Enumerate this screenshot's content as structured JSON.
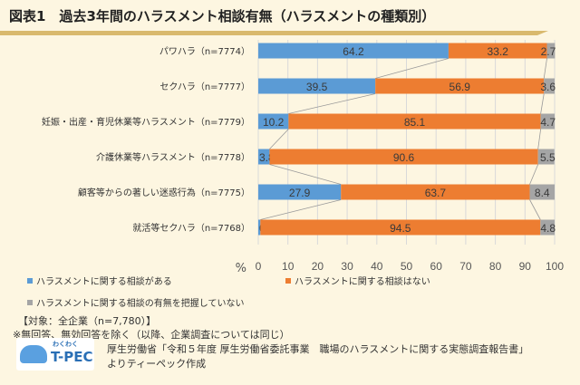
{
  "title": "図表1　過去3年間のハラスメント相談有無（ハラスメントの種類別）",
  "chart_data": {
    "type": "bar",
    "orientation": "horizontal",
    "stacked": true,
    "categories": [
      "パワハラ（n=7774）",
      "セクハラ（n=7777）",
      "妊娠・出産・育児休業等ハラスメント（n=7779）",
      "介護休業等ハラスメント（n=7778）",
      "顧客等からの著しい迷惑行為（n=7775）",
      "就活等セクハラ（n=7768）"
    ],
    "series": [
      {
        "name": "ハラスメントに関する相談がある",
        "color": "#5b9bd5",
        "values": [
          64.2,
          39.5,
          10.2,
          3.8,
          27.9,
          0.7
        ]
      },
      {
        "name": "ハラスメントに関する相談はない",
        "color": "#ed7d31",
        "values": [
          33.2,
          56.9,
          85.1,
          90.6,
          63.7,
          94.5
        ]
      },
      {
        "name": "ハラスメントに関する相談の有無を把握していない",
        "color": "#a5a5a5",
        "values": [
          2.7,
          3.6,
          4.7,
          5.5,
          8.4,
          4.8
        ]
      }
    ],
    "xlim": [
      0,
      100
    ],
    "xticks": [
      "0",
      "10",
      "20",
      "30",
      "40",
      "50",
      "60",
      "70",
      "80",
      "90",
      "100"
    ],
    "xunit": "%",
    "grid": true,
    "legend": "bottom"
  },
  "notes": [
    "【対象：全企業（n=7,780）】",
    "※無回答、無効回答を除く（以降、企業調査については同じ）"
  ],
  "logo": {
    "small": "わくわく",
    "big": "T-PEC"
  },
  "source": [
    "厚生労働省「令和５年度 厚生労働省委託事業　職場のハラスメントに関する実態調査報告書」",
    "よりティーペック作成"
  ]
}
